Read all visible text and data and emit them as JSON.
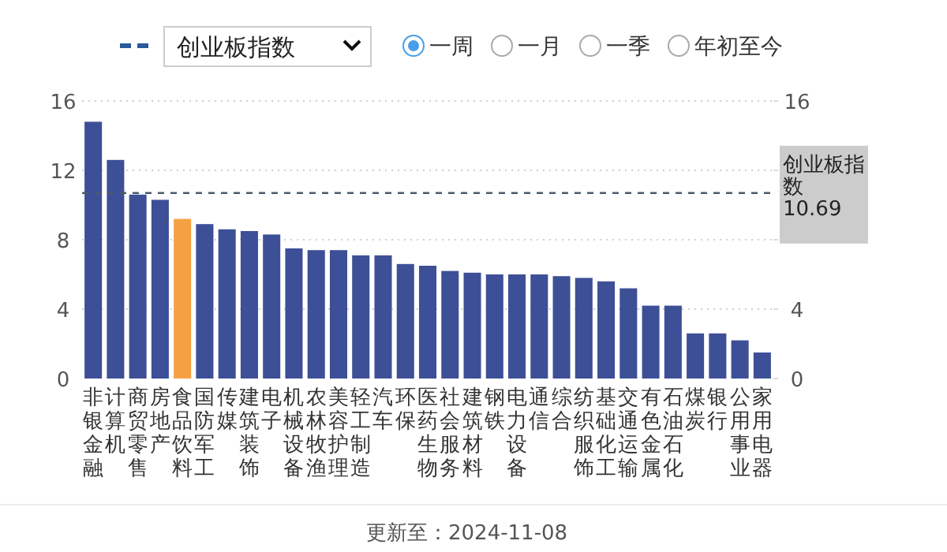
{
  "chart_data": {
    "type": "bar",
    "categories": [
      "非银金融",
      "计算机",
      "商贸零售",
      "房地产",
      "食品饮料",
      "国防军工",
      "传媒",
      "建筑装饰",
      "电子",
      "机械设备",
      "农林牧渔",
      "美容护理",
      "轻工制造",
      "汽车",
      "环保",
      "医药生物",
      "社会服务",
      "建筑材料",
      "钢铁",
      "电力设备",
      "通信",
      "综合",
      "纺织服饰",
      "基础化工",
      "交通运输",
      "有色金属",
      "石油石化",
      "煤炭",
      "银行",
      "公用事业",
      "家用电器"
    ],
    "values": [
      14.8,
      12.6,
      10.6,
      10.3,
      9.2,
      8.9,
      8.6,
      8.5,
      8.3,
      7.5,
      7.4,
      7.4,
      7.1,
      7.1,
      6.6,
      6.5,
      6.2,
      6.1,
      6.0,
      6.0,
      6.0,
      5.9,
      5.8,
      5.6,
      5.2,
      4.2,
      4.2,
      2.6,
      2.6,
      2.2,
      1.5
    ],
    "colors": [
      "#3d4f96",
      "#3d4f96",
      "#3d4f96",
      "#3d4f96",
      "#f5a142",
      "#3d4f96",
      "#3d4f96",
      "#3d4f96",
      "#3d4f96",
      "#3d4f96",
      "#3d4f96",
      "#3d4f96",
      "#3d4f96",
      "#3d4f96",
      "#3d4f96",
      "#3d4f96",
      "#3d4f96",
      "#3d4f96",
      "#3d4f96",
      "#3d4f96",
      "#3d4f96",
      "#3d4f96",
      "#3d4f96",
      "#3d4f96",
      "#3d4f96",
      "#3d4f96",
      "#3d4f96",
      "#3d4f96",
      "#3d4f96",
      "#3d4f96",
      "#3d4f96"
    ],
    "ylim": [
      0,
      16
    ],
    "yticks": [
      0,
      4,
      8,
      12,
      16
    ],
    "y2lim": [
      0,
      16
    ],
    "y2ticks": [
      0,
      4,
      {
        "value": 8,
        "label": null
      },
      {
        "value": 12,
        "label": null
      },
      16
    ],
    "grid": "y",
    "legend": "top",
    "legend_title": "创业板指数",
    "ref_lines": [
      {
        "axis": "y",
        "value": 10.69,
        "label": "创业板指数 10.69",
        "color": "#4a5a6a",
        "line_style": "dashed"
      }
    ],
    "annotations": [
      "一周",
      "一月",
      "一季",
      "年初至今",
      "更新至：2024-11-08"
    ]
  }
}
